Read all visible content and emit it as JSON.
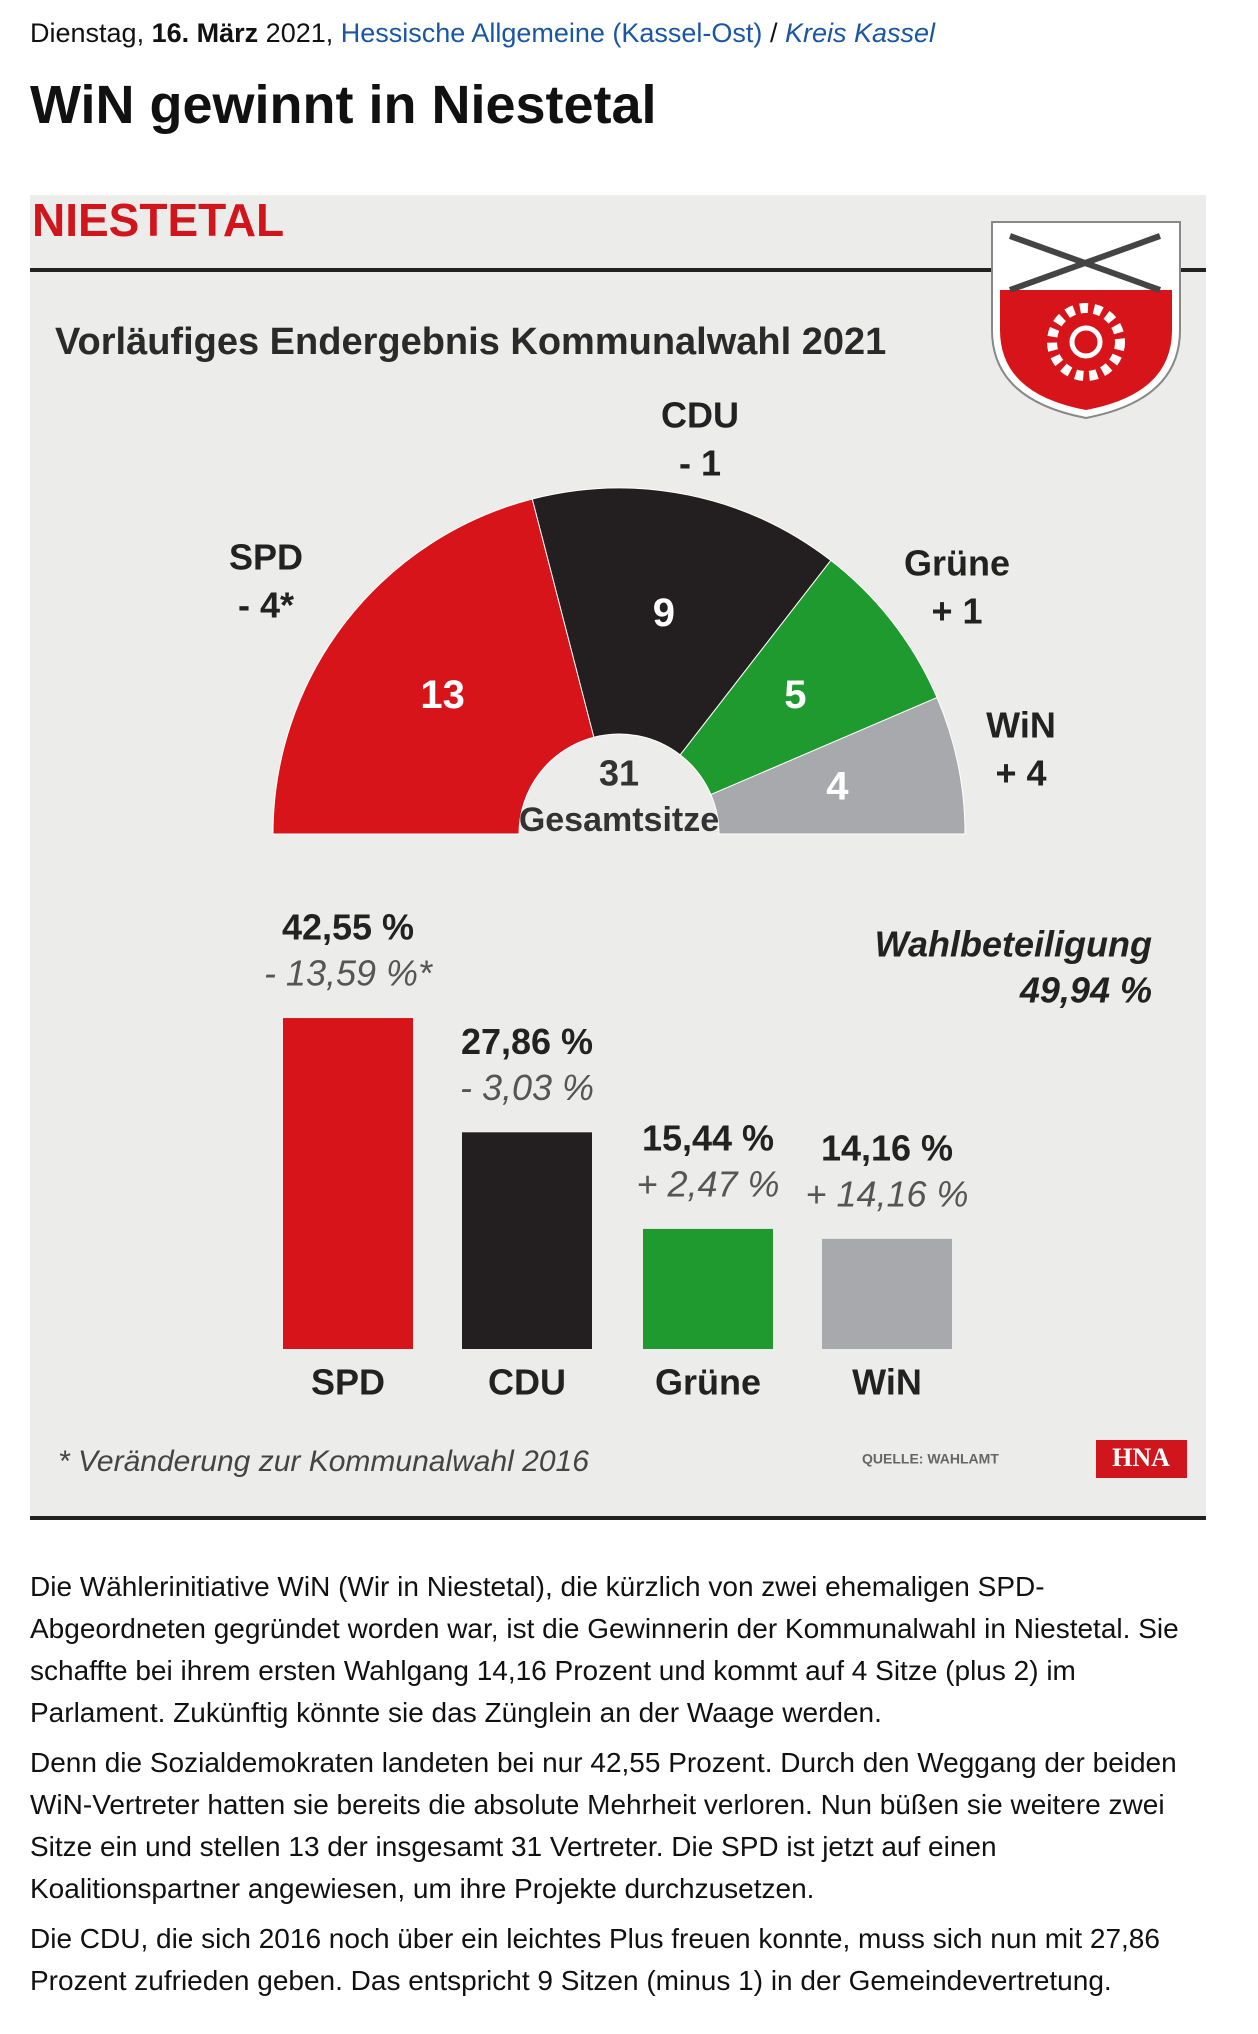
{
  "header": {
    "weekday": "Dienstag,",
    "date": "16. März",
    "year": "2021,",
    "source": "Hessische Allgemeine (Kassel-Ost)",
    "separator": "/",
    "section": "Kreis Kassel"
  },
  "title": "WiN gewinnt in Niestetal",
  "graphic": {
    "place": "NIESTETAL",
    "heading": "Vorläufiges Endergebnis Kommunalwahl 2021",
    "footnote": "* Veränderung zur Kommunalwahl 2016",
    "source": "QUELLE: WAHLAMT",
    "brand": "HNA"
  },
  "chart_data": [
    {
      "type": "half-donut",
      "categories": [
        "SPD",
        "CDU",
        "Grüne",
        "WiN"
      ],
      "values": [
        13,
        9,
        5,
        4
      ],
      "change_labels": [
        "- 4*",
        "- 1",
        "+ 1",
        "+ 4"
      ],
      "colors": [
        "#d7141a",
        "#231f20",
        "#1e9a2e",
        "#a7a9ac"
      ],
      "total": 31,
      "total_label": "Gesamtsitze"
    },
    {
      "type": "bar",
      "categories": [
        "SPD",
        "CDU",
        "Grüne",
        "WiN"
      ],
      "values": [
        42.55,
        27.86,
        15.44,
        14.16
      ],
      "value_labels": [
        "42,55 %",
        "27,86 %",
        "15,44 %",
        "14,16 %"
      ],
      "change_labels": [
        "- 13,59 %*",
        "- 3,03 %",
        "+ 2,47 %",
        "+ 14,16 %"
      ],
      "colors": [
        "#d7141a",
        "#231f20",
        "#1e9a2e",
        "#a7a9ac"
      ],
      "ylim": [
        0,
        45
      ],
      "annotation": {
        "label": "Wahlbeteiligung",
        "value": 49.94,
        "value_label": "49,94 %"
      }
    }
  ],
  "article": {
    "paragraphs": [
      "Die Wählerinitiative WiN (Wir in Niestetal), die kürzlich von zwei ehemaligen SPD-Abgeordneten gegründet worden war, ist die Gewinnerin der Kommunalwahl in Niestetal. Sie schaffte bei ihrem ersten Wahlgang 14,16 Prozent und kommt auf 4 Sitze (plus 2) im Parlament. Zukünftig könnte sie das Zünglein an der Waage werden.",
      "Denn die Sozialdemokraten landeten bei nur 42,55 Prozent. Durch den Weggang der beiden WiN-Vertreter hatten sie bereits die absolute Mehrheit verloren. Nun büßen sie weitere zwei Sitze ein und stellen 13 der insgesamt 31 Vertreter. Die SPD ist jetzt auf einen Koalitionspartner angewiesen, um ihre Projekte durchzusetzen.",
      "Die CDU, die sich 2016 noch über ein leichtes Plus freuen konnte, muss sich nun mit 27,86 Prozent zufrieden geben. Das entspricht 9 Sitzen (minus 1) in der Gemeindevertretung."
    ]
  }
}
